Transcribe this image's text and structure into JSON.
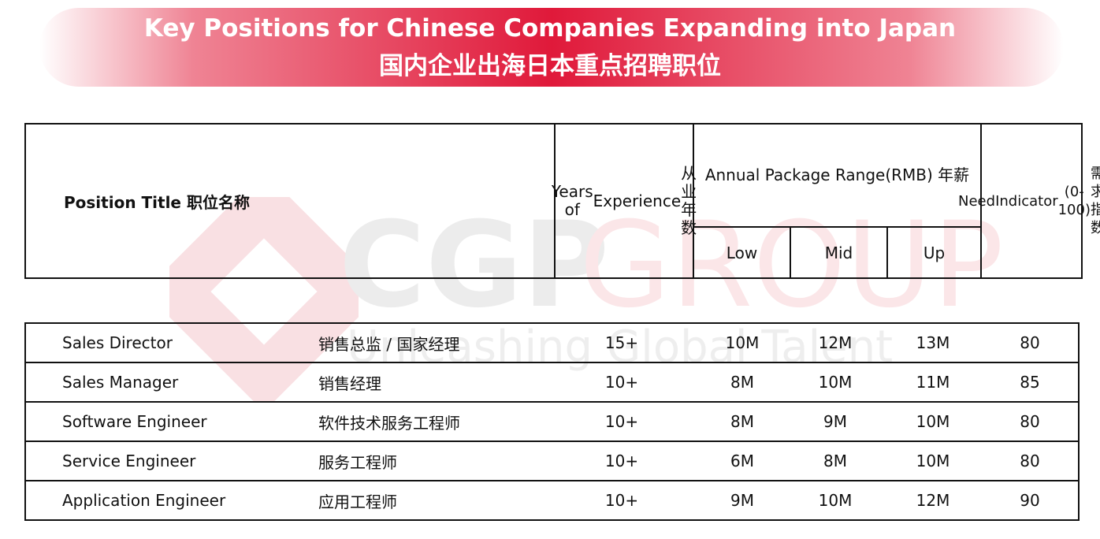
{
  "header": {
    "title_en": "Key Positions for Chinese Companies Expanding into Japan",
    "title_zh": "国内企业出海日本重点招聘职位"
  },
  "watermark": {
    "brand_dark": "CGP",
    "brand_light": "GROUP",
    "tagline": "Unleashing Global Talent"
  },
  "table": {
    "columns": {
      "position": "Position Title 职位名称",
      "experience": [
        "Years of",
        "Experience",
        "从业年数"
      ],
      "package": [
        "Annual Package Range",
        "(RMB) 年薪"
      ],
      "low": "Low",
      "mid": "Mid",
      "up": "Up",
      "need": [
        "Need",
        "Indicator",
        "(0-100)",
        "需求指数"
      ]
    },
    "rows": [
      [
        "Sales Director",
        "销售总监 / 国家经理",
        "15+",
        "10M",
        "12M",
        "13M",
        "80"
      ],
      [
        "Sales Manager",
        "销售经理",
        "10+",
        "8M",
        "10M",
        "11M",
        "85"
      ],
      [
        "Software Engineer",
        "软件技术服务工程师",
        "10+",
        "8M",
        "9M",
        "10M",
        "80"
      ],
      [
        "Service Engineer",
        "服务工程师",
        "10+",
        "6M",
        "8M",
        "10M",
        "80"
      ],
      [
        "Application Engineer",
        "应用工程师",
        "10+",
        "9M",
        "10M",
        "12M",
        "90"
      ]
    ]
  }
}
